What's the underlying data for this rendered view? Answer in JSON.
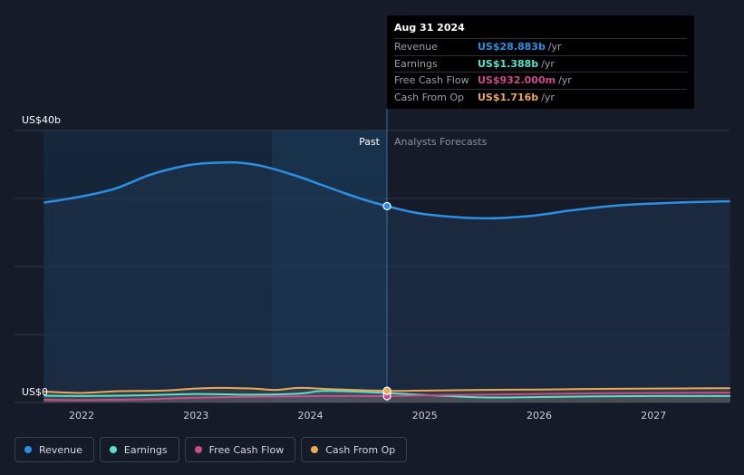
{
  "chart_data": {
    "type": "line",
    "y_axis": {
      "top_label": "US$40b",
      "bottom_label": "US$0",
      "ylim": [
        0,
        40
      ]
    },
    "x_ticks": [
      "2022",
      "2023",
      "2024",
      "2025",
      "2026",
      "2027"
    ],
    "region_labels": {
      "past": "Past",
      "forecast": "Analysts Forecasts"
    },
    "series": [
      {
        "name": "Revenue",
        "key": "revenue",
        "color": "#2d8fe3",
        "points": [
          [
            2021.67,
            29.4
          ],
          [
            2022.0,
            30.3
          ],
          [
            2022.3,
            31.5
          ],
          [
            2022.6,
            33.5
          ],
          [
            2022.9,
            34.8
          ],
          [
            2023.1,
            35.2
          ],
          [
            2023.35,
            35.3
          ],
          [
            2023.6,
            34.7
          ],
          [
            2023.9,
            33.2
          ],
          [
            2024.1,
            32.0
          ],
          [
            2024.4,
            30.2
          ],
          [
            2024.67,
            28.883
          ],
          [
            2025.0,
            27.7
          ],
          [
            2025.5,
            27.1
          ],
          [
            2025.9,
            27.4
          ],
          [
            2026.3,
            28.3
          ],
          [
            2026.7,
            29.0
          ],
          [
            2027.2,
            29.4
          ],
          [
            2027.67,
            29.6
          ]
        ]
      },
      {
        "name": "Earnings",
        "key": "earnings",
        "color": "#5ae0cc",
        "points": [
          [
            2021.67,
            1.0
          ],
          [
            2022.0,
            0.95
          ],
          [
            2022.5,
            1.05
          ],
          [
            2023.0,
            1.25
          ],
          [
            2023.5,
            1.15
          ],
          [
            2023.9,
            1.3
          ],
          [
            2024.1,
            1.7
          ],
          [
            2024.4,
            1.6
          ],
          [
            2024.67,
            1.388
          ],
          [
            2025.0,
            1.1
          ],
          [
            2025.5,
            0.75
          ],
          [
            2026.0,
            0.8
          ],
          [
            2026.5,
            0.9
          ],
          [
            2027.0,
            0.95
          ],
          [
            2027.67,
            0.95
          ]
        ]
      },
      {
        "name": "Free Cash Flow",
        "key": "fcf",
        "color": "#c94d8a",
        "points": [
          [
            2021.67,
            0.4
          ],
          [
            2022.0,
            0.35
          ],
          [
            2022.5,
            0.45
          ],
          [
            2023.0,
            0.7
          ],
          [
            2023.5,
            0.85
          ],
          [
            2023.9,
            0.9
          ],
          [
            2024.1,
            0.95
          ],
          [
            2024.4,
            0.95
          ],
          [
            2024.67,
            0.932
          ],
          [
            2025.0,
            1.05
          ],
          [
            2025.5,
            1.15
          ],
          [
            2026.0,
            1.25
          ],
          [
            2026.5,
            1.35
          ],
          [
            2027.0,
            1.4
          ],
          [
            2027.67,
            1.45
          ]
        ]
      },
      {
        "name": "Cash From Op",
        "key": "cfo",
        "color": "#eaa957",
        "points": [
          [
            2021.67,
            1.6
          ],
          [
            2022.0,
            1.4
          ],
          [
            2022.3,
            1.65
          ],
          [
            2022.7,
            1.75
          ],
          [
            2023.0,
            2.05
          ],
          [
            2023.25,
            2.15
          ],
          [
            2023.5,
            2.05
          ],
          [
            2023.7,
            1.85
          ],
          [
            2023.9,
            2.15
          ],
          [
            2024.2,
            1.95
          ],
          [
            2024.67,
            1.716
          ],
          [
            2025.0,
            1.75
          ],
          [
            2025.5,
            1.85
          ],
          [
            2026.0,
            1.9
          ],
          [
            2026.5,
            2.0
          ],
          [
            2027.0,
            2.05
          ],
          [
            2027.67,
            2.1
          ]
        ]
      }
    ],
    "highlight": {
      "x": 2024.67,
      "date": "Aug 31 2024"
    }
  },
  "tooltip": {
    "date": "Aug 31 2024",
    "rows": [
      {
        "label": "Revenue",
        "value": "US$28.883b",
        "unit": "/yr",
        "color": "#2d8fe3"
      },
      {
        "label": "Earnings",
        "value": "US$1.388b",
        "unit": "/yr",
        "color": "#5ae0cc"
      },
      {
        "label": "Free Cash Flow",
        "value": "US$932.000m",
        "unit": "/yr",
        "color": "#c94d8a"
      },
      {
        "label": "Cash From Op",
        "value": "US$1.716b",
        "unit": "/yr",
        "color": "#eaa957"
      }
    ]
  },
  "legend": [
    {
      "label": "Revenue",
      "color": "#2d8fe3"
    },
    {
      "label": "Earnings",
      "color": "#5ae0cc"
    },
    {
      "label": "Free Cash Flow",
      "color": "#c94d8a"
    },
    {
      "label": "Cash From Op",
      "color": "#eaa957"
    }
  ]
}
